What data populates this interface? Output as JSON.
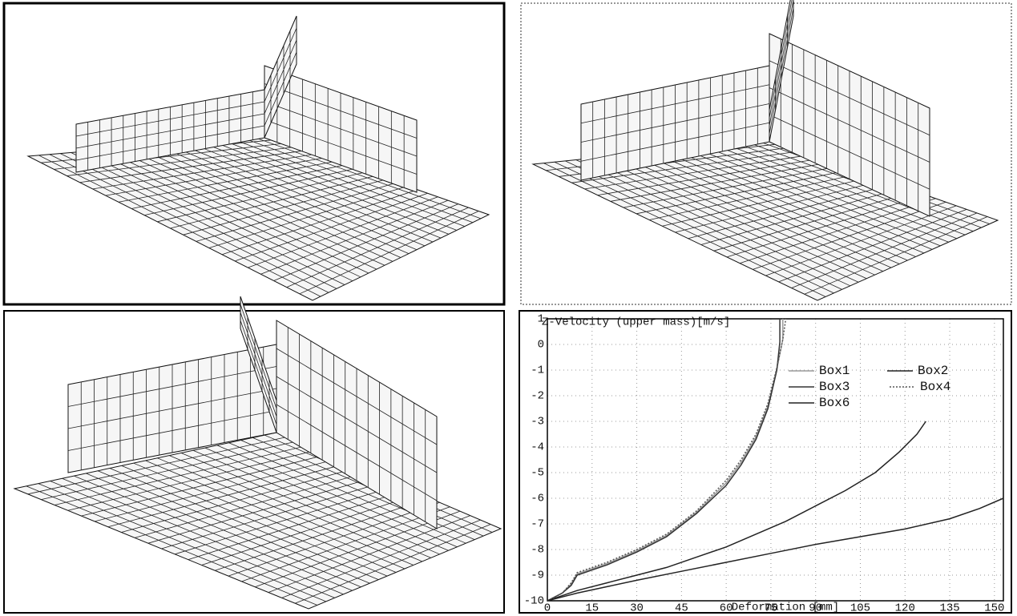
{
  "chart_data": {
    "type": "line",
    "title": "Z-Velocity (upper mass)[m/s]",
    "x_label": "Deformation [mm]",
    "xlim": [
      0,
      153
    ],
    "ylim": [
      -10,
      1
    ],
    "xticks": [
      0,
      15,
      30,
      45,
      60,
      75,
      90,
      105,
      120,
      135,
      150
    ],
    "yticks": [
      1,
      0,
      -1,
      -2,
      -3,
      -4,
      -5,
      -6,
      -7,
      -8,
      -9,
      -10
    ],
    "grid": true,
    "legend": "upper right",
    "series": [
      {
        "name": "Box1",
        "color": "#9a9a9a",
        "dash": "none",
        "x": [
          0,
          5,
          8,
          10,
          15,
          20,
          30,
          40,
          50,
          60,
          65,
          70,
          74,
          77,
          79,
          79
        ],
        "values": [
          -10,
          -9.7,
          -9.35,
          -8.95,
          -8.75,
          -8.55,
          -8.05,
          -7.45,
          -6.55,
          -5.4,
          -4.6,
          -3.6,
          -2.4,
          -0.95,
          0.2,
          1
        ]
      },
      {
        "name": "Box2",
        "color": "#222222",
        "dash": "none",
        "x": [
          0,
          5,
          10,
          20,
          30,
          40,
          50,
          60,
          70,
          80,
          90,
          100,
          110,
          118,
          124,
          127
        ],
        "values": [
          -10,
          -9.8,
          -9.6,
          -9.3,
          -9,
          -8.7,
          -8.3,
          -7.9,
          -7.4,
          -6.9,
          -6.3,
          -5.7,
          -5,
          -4.2,
          -3.5,
          -3
        ]
      },
      {
        "name": "Box3",
        "color": "#333333",
        "dash": "none",
        "x": [
          0,
          5,
          8,
          10,
          15,
          20,
          30,
          40,
          50,
          60,
          65,
          70,
          74,
          77,
          78,
          78
        ],
        "values": [
          -10,
          -9.7,
          -9.4,
          -9,
          -8.8,
          -8.6,
          -8.1,
          -7.5,
          -6.6,
          -5.5,
          -4.7,
          -3.7,
          -2.5,
          -1,
          0.1,
          1
        ]
      },
      {
        "name": "Box4",
        "color": "#555555",
        "dash": "2 2",
        "x": [
          0,
          5,
          8,
          10,
          15,
          20,
          30,
          40,
          50,
          60,
          65,
          70,
          74,
          77,
          79,
          80
        ],
        "values": [
          -10,
          -9.7,
          -9.3,
          -8.9,
          -8.7,
          -8.5,
          -8,
          -7.4,
          -6.5,
          -5.3,
          -4.5,
          -3.5,
          -2.3,
          -0.9,
          0.2,
          1
        ]
      },
      {
        "name": "Box6",
        "color": "#222222",
        "dash": "none",
        "x": [
          0,
          5,
          10,
          20,
          30,
          45,
          60,
          75,
          90,
          105,
          120,
          135,
          145,
          153
        ],
        "values": [
          -10,
          -9.85,
          -9.7,
          -9.45,
          -9.2,
          -8.85,
          -8.5,
          -8.15,
          -7.8,
          -7.5,
          -7.2,
          -6.8,
          -6.4,
          -6
        ]
      }
    ]
  }
}
